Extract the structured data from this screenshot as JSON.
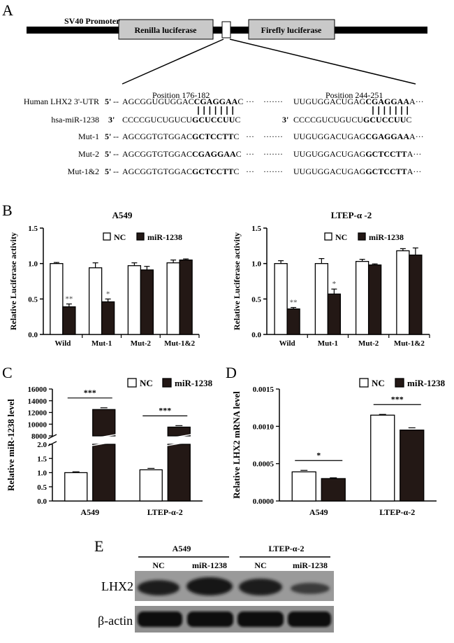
{
  "panel_labels": {
    "a": "A",
    "b": "B",
    "c": "C",
    "d": "D",
    "e": "E"
  },
  "panel_a": {
    "promoter": "SV40 Promoter",
    "renilla": "Renilla luciferase",
    "firefly": "Firefly luciferase",
    "pos1": "Position 176-182",
    "pos2": "Position 244-251",
    "rows": [
      {
        "label": "Human LHX2 3'-UTR",
        "p": "5'",
        "s1a": "AGCGGUGUGGAC",
        "s1b": "CGAGGAA",
        "s1c": "C",
        "s2a": "UUGUGGACUGAG",
        "s2b": "CGAGGAA",
        "s2c": "A"
      },
      {
        "label": "hsa-miR-1238",
        "p": "3'",
        "s1a": "CCCCGUCUGUCU",
        "s1b": "GCUCCUU",
        "s1c": "C",
        "s2a": "CCCCGUCUGUCU",
        "s2b": "GCUCCUU",
        "s2c": "C"
      },
      {
        "label": "Mut-1",
        "p": "5'",
        "s1a": "AGCGGTGTGGAC",
        "s1b": "GCTCCTT",
        "s1c": "C",
        "s2a": "UUGUGGACUGAG",
        "s2b": "CGAGGAA",
        "s2c": "A"
      },
      {
        "label": "Mut-2",
        "p": "5'",
        "s1a": "AGCGGTGTGGAC",
        "s1b": "CGAGGAA",
        "s1c": "C",
        "s2a": "UUGUGGACUGAG",
        "s2b": "GCTCCTT",
        "s2c": "A"
      },
      {
        "label": "Mut-1&2",
        "p": "5'",
        "s1a": "AGCGGTGTGGAC",
        "s1b": "GCTCCTT",
        "s1c": "C",
        "s2a": "UUGUGGACUGAG",
        "s2b": "GCTCCTT",
        "s2c": "A"
      }
    ],
    "dash_short": "--",
    "dots": "·······",
    "ellipsis": "···"
  },
  "chart_data": [
    {
      "type": "bar",
      "title": "A549",
      "ylabel": "Relative Luciferase activity",
      "categories": [
        "Wild",
        "Mut-1",
        "Mut-2",
        "Mut-1&2"
      ],
      "yticks": [
        "0.0",
        "0.5",
        "1.0",
        "1.5"
      ],
      "ylim": [
        0,
        1.5
      ],
      "series": [
        {
          "name": "NC",
          "values": [
            1.0,
            0.94,
            0.97,
            1.01
          ],
          "errors": [
            0.015,
            0.07,
            0.04,
            0.04
          ]
        },
        {
          "name": "miR-1238",
          "values": [
            0.39,
            0.46,
            0.91,
            1.05
          ],
          "errors": [
            0.04,
            0.04,
            0.05,
            0.015
          ]
        }
      ],
      "annotations": [
        "**",
        "*",
        "",
        ""
      ]
    },
    {
      "type": "bar",
      "title": "LTEP-α -2",
      "ylabel": "Relative Luciferase activity",
      "categories": [
        "Wild",
        "Mut-1",
        "Mut-2",
        "Mut-1&2"
      ],
      "yticks": [
        "0.0",
        "0.5",
        "1.0",
        "1.5"
      ],
      "ylim": [
        0,
        1.5
      ],
      "series": [
        {
          "name": "NC",
          "values": [
            1.0,
            1.0,
            1.03,
            1.18
          ],
          "errors": [
            0.04,
            0.07,
            0.03,
            0.03
          ]
        },
        {
          "name": "miR-1238",
          "values": [
            0.36,
            0.57,
            0.98,
            1.12
          ],
          "errors": [
            0.02,
            0.07,
            0.015,
            0.1
          ]
        }
      ],
      "annotations": [
        "**",
        "*",
        "",
        ""
      ]
    },
    {
      "type": "bar",
      "ylabel": "Relative miR-1238 level",
      "categories": [
        "A549",
        "LTEP-α-2"
      ],
      "yticks_low": [
        "0.0",
        "0.5",
        "1.0",
        "1.5",
        "2.0"
      ],
      "yticks_high": [
        "8000",
        "10000",
        "12000",
        "14000",
        "16000"
      ],
      "axis_break": [
        2.0,
        8000
      ],
      "series": [
        {
          "name": "NC",
          "values": [
            1.0,
            1.1
          ],
          "errors": [
            0.03,
            0.05
          ]
        },
        {
          "name": "miR-1238",
          "values": [
            12500,
            9500
          ],
          "errors": [
            300,
            250
          ]
        }
      ],
      "annotations": [
        "***",
        "***"
      ]
    },
    {
      "type": "bar",
      "ylabel": "Relative LHX2 mRNA level",
      "categories": [
        "A549",
        "LTEP-α-2"
      ],
      "yticks": [
        "0.0000",
        "0.0005",
        "0.0010",
        "0.0015"
      ],
      "ylim": [
        0,
        0.0015
      ],
      "series": [
        {
          "name": "NC",
          "values": [
            0.00039,
            0.00115
          ],
          "errors": [
            2e-05,
            1e-05
          ]
        },
        {
          "name": "miR-1238",
          "values": [
            0.0003,
            0.00095
          ],
          "errors": [
            1e-05,
            3e-05
          ]
        }
      ],
      "annotations": [
        "*",
        "***"
      ]
    }
  ],
  "panel_e": {
    "groups": [
      "A549",
      "LTEP-α-2"
    ],
    "lanes": [
      "NC",
      "miR-1238",
      "NC",
      "miR-1238"
    ],
    "rows": [
      "LHX2",
      "β-actin"
    ]
  },
  "colors": {
    "nc_fill": "#ffffff",
    "mir_fill": "#231815",
    "line": "#000000"
  }
}
